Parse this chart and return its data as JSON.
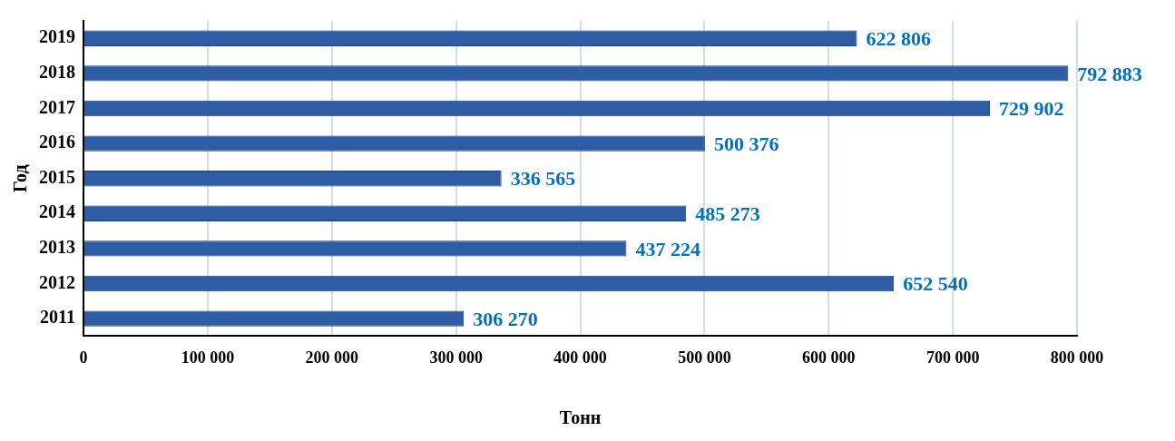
{
  "chart_data": {
    "type": "bar",
    "orientation": "horizontal",
    "xlabel": "Тонн",
    "ylabel": "Год",
    "categories": [
      "2019",
      "2018",
      "2017",
      "2016",
      "2015",
      "2014",
      "2013",
      "2012",
      "2011"
    ],
    "values": [
      622806,
      792883,
      729902,
      500376,
      336565,
      485273,
      437224,
      652540,
      306270
    ],
    "value_labels": [
      "622 806",
      "792 883",
      "729 902",
      "500 376",
      "336 565",
      "485 273",
      "437 224",
      "652 540",
      "306 270"
    ],
    "color": "#2e5da6",
    "xlim": [
      0,
      800000
    ],
    "xticks": [
      {
        "value": 0,
        "label": "0"
      },
      {
        "value": 100000,
        "label": "100 000"
      },
      {
        "value": 200000,
        "label": "200 000"
      },
      {
        "value": 300000,
        "label": "300 000"
      },
      {
        "value": 400000,
        "label": "400 000"
      },
      {
        "value": 500000,
        "label": "500 000"
      },
      {
        "value": 600000,
        "label": "600 000"
      },
      {
        "value": 700000,
        "label": "700 000"
      },
      {
        "value": 800000,
        "label": "800 000"
      }
    ],
    "grid": "x",
    "legend": false
  }
}
